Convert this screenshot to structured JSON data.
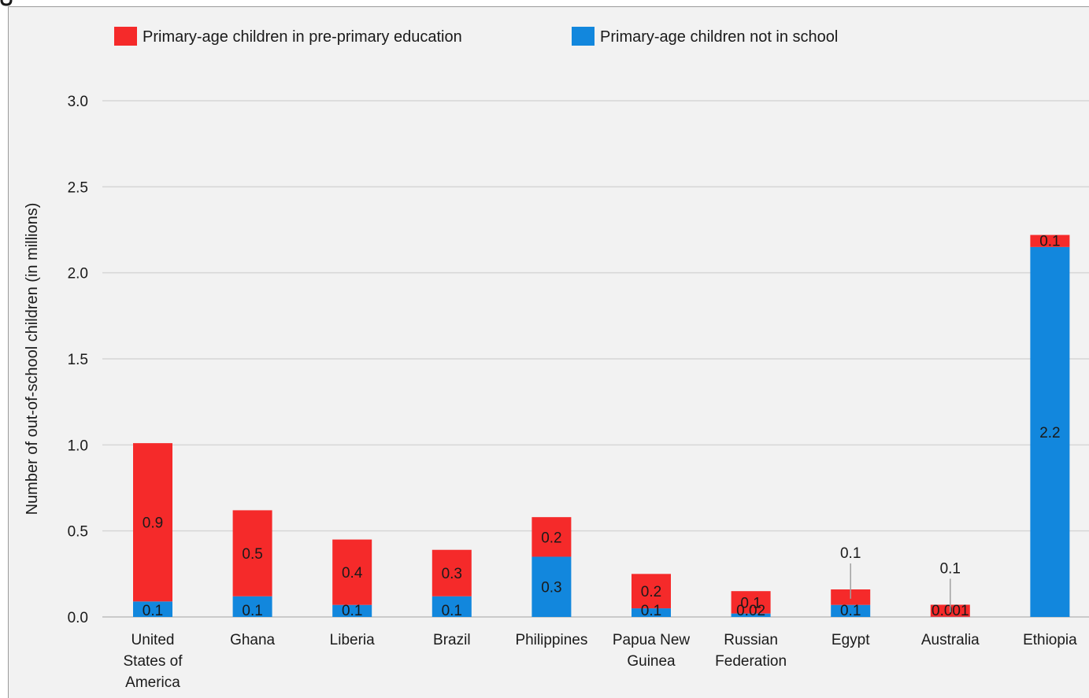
{
  "chart_data": {
    "type": "bar",
    "stacked": true,
    "ylabel": "Number of out-of-school children (in millions)",
    "ylim": [
      0,
      3.0
    ],
    "yticks": [
      "0.0",
      "0.5",
      "1.0",
      "1.5",
      "2.0",
      "2.5",
      "3.0"
    ],
    "ytick_values": [
      0,
      0.5,
      1.0,
      1.5,
      2.0,
      2.5,
      3.0
    ],
    "grid": true,
    "legend_position": "top",
    "categories": [
      [
        "United",
        "States of",
        "America"
      ],
      [
        "Ghana"
      ],
      [
        "Liberia"
      ],
      [
        "Brazil"
      ],
      [
        "Philippines"
      ],
      [
        "Papua New",
        "Guinea"
      ],
      [
        "Russian",
        "Federation"
      ],
      [
        "Egypt"
      ],
      [
        "Australia"
      ],
      [
        "Ethiopia"
      ]
    ],
    "series": [
      {
        "name": "Primary-age children not in school",
        "color": "#1287dd",
        "values": [
          0.09,
          0.12,
          0.07,
          0.12,
          0.35,
          0.05,
          0.02,
          0.07,
          0.001,
          2.15
        ],
        "labels": [
          "0.1",
          "0.1",
          "0.1",
          "0.1",
          "0.3",
          "0.1",
          "0.02",
          "0.1",
          "0.001",
          "2.2"
        ]
      },
      {
        "name": "Primary-age children in pre-primary education",
        "color": "#f52a2a",
        "values": [
          0.92,
          0.5,
          0.38,
          0.27,
          0.23,
          0.2,
          0.13,
          0.09,
          0.07,
          0.07
        ],
        "labels": [
          "0.9",
          "0.5",
          "0.4",
          "0.3",
          "0.2",
          "0.2",
          "0.1",
          "0.1",
          "0.1",
          "0.1"
        ]
      }
    ],
    "legend": [
      {
        "label": "Primary-age children in pre-primary education",
        "color": "#f52a2a"
      },
      {
        "label": "Primary-age children not in school",
        "color": "#1287dd"
      }
    ]
  }
}
